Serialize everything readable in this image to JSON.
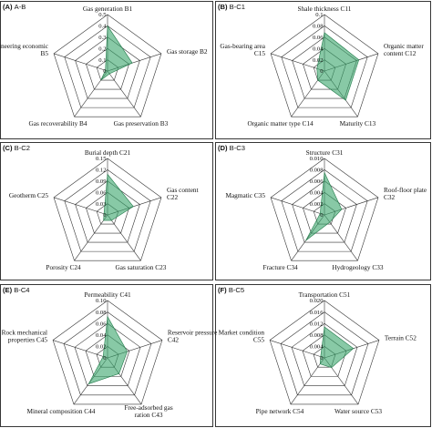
{
  "figure": {
    "chart_data": [
      {
        "type": "radar",
        "panel_letter": "(A)",
        "title": "A-B",
        "axes": [
          "Gas generation B1",
          "Gas storage B2",
          "Gas preservation B3",
          "Gas recoverability B4",
          "Engineering economic B5"
        ],
        "ticks": [
          "0",
          "0.1",
          "0.2",
          "0.3",
          "0.4",
          "0.5"
        ],
        "range": [
          0,
          0.5
        ],
        "values": [
          0.4,
          0.23,
          0.03,
          0.1,
          0.02
        ],
        "fill_color": "#39a56b"
      },
      {
        "type": "radar",
        "panel_letter": "(B)",
        "title": "B-C1",
        "axes": [
          "Shale thickness C11",
          "Organic matter content C12",
          "Maturity C13",
          "Organic matter type C14",
          "Gas-bearing area C15"
        ],
        "ticks": [
          "0",
          "0.02",
          "0.04",
          "0.06",
          "0.08",
          "0.1"
        ],
        "range": [
          0,
          0.1
        ],
        "values": [
          0.068,
          0.064,
          0.064,
          0.02,
          0.014
        ],
        "fill_color": "#39a56b"
      },
      {
        "type": "radar",
        "panel_letter": "(C)",
        "title": "B-C2",
        "axes": [
          "Burial depth C21",
          "Gas content C22",
          "Gas saturation C23",
          "Porosity C24",
          "Geotherm C25"
        ],
        "ticks": [
          "0",
          "0.03",
          "0.06",
          "0.09",
          "0.12",
          "0.15"
        ],
        "range": [
          0,
          0.15
        ],
        "values": [
          0.108,
          0.072,
          0.018,
          0.018,
          0.01
        ],
        "fill_color": "#39a56b"
      },
      {
        "type": "radar",
        "panel_letter": "(D)",
        "title": "B-C3",
        "axes": [
          "Structure C31",
          "Roof-floor plate C32",
          "Hydrogeology C33",
          "Fracture C34",
          "Magmatic C35"
        ],
        "ticks": [
          "0",
          "0.002",
          "0.004",
          "0.006",
          "0.008",
          "0.010"
        ],
        "range": [
          0,
          0.01
        ],
        "values": [
          0.0075,
          0.0032,
          0.0016,
          0.0056,
          0.0008
        ],
        "fill_color": "#39a56b"
      },
      {
        "type": "radar",
        "panel_letter": "(E)",
        "title": "B-C4",
        "axes": [
          "Permeability C41",
          "Reservoir pressure C42",
          "Free-adsorbed gas ration C43",
          "Mineral composition C44",
          "Rock mechanical properties C45"
        ],
        "ticks": [
          "0",
          "0.02",
          "0.04",
          "0.06",
          "0.08",
          "0.10"
        ],
        "range": [
          0,
          0.1
        ],
        "values": [
          0.072,
          0.036,
          0.034,
          0.056,
          0.008
        ],
        "fill_color": "#39a56b"
      },
      {
        "type": "radar",
        "panel_letter": "(F)",
        "title": "B-C5",
        "axes": [
          "Transportation C51",
          "Terrain C52",
          "Water source C53",
          "Pipe network C54",
          "Market condition C55"
        ],
        "ticks": [
          "0",
          "0.004",
          "0.008",
          "0.012",
          "0.016",
          "0.020"
        ],
        "range": [
          0,
          0.02
        ],
        "values": [
          0.0108,
          0.0106,
          0.0042,
          0.0026,
          0.0014
        ],
        "fill_color": "#39a56b"
      }
    ]
  }
}
